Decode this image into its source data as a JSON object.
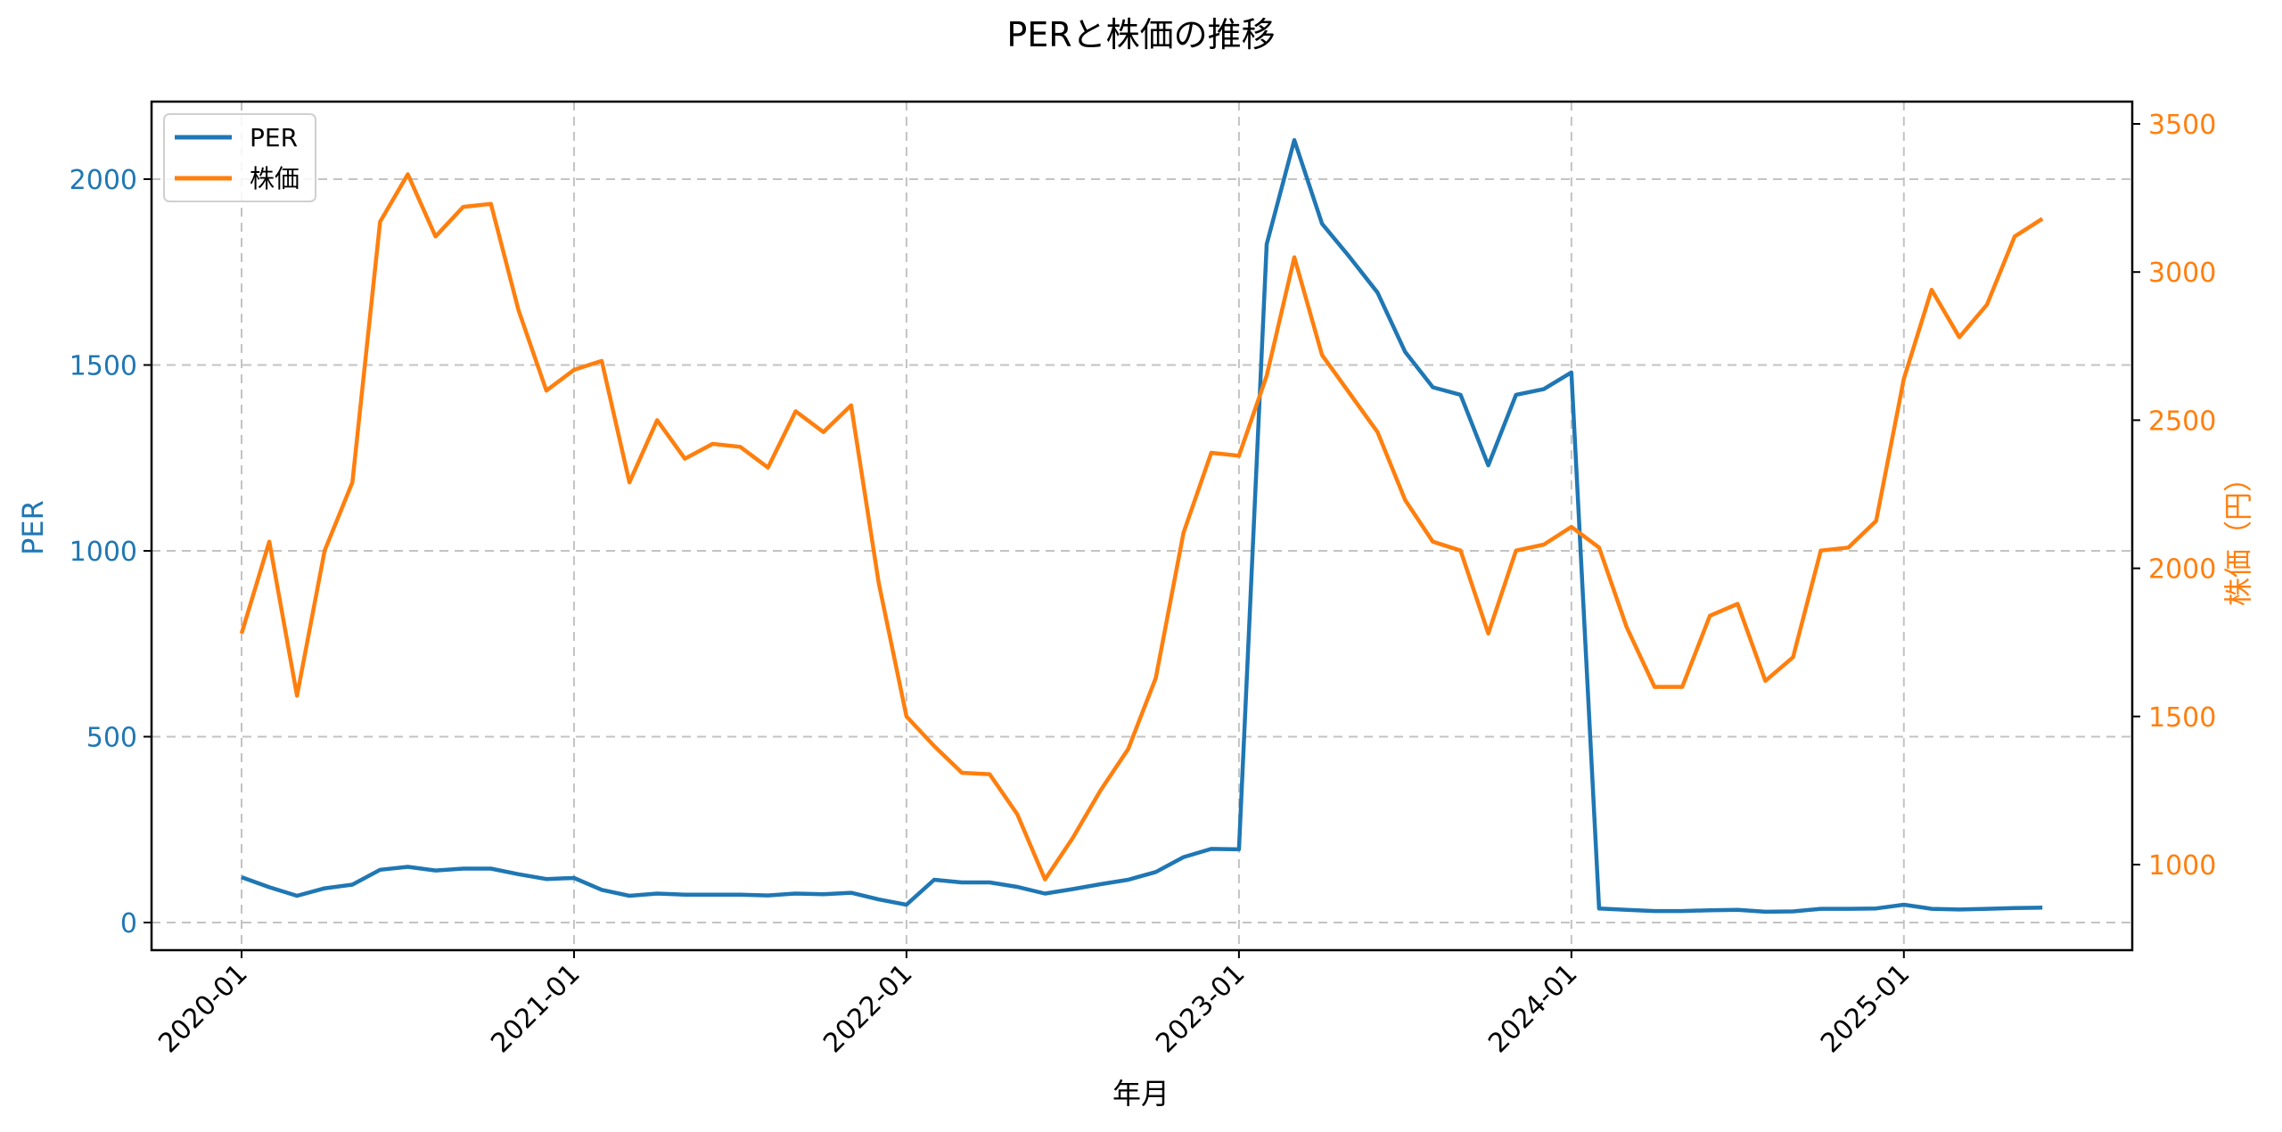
{
  "chart_data": {
    "type": "line",
    "title": "PERと株価の推移",
    "xlabel": "年月",
    "ylabel": "PER",
    "ylabel_right": "株価（円）",
    "ylim": [
      -75,
      2200
    ],
    "ylim_right": [
      760,
      3570
    ],
    "yticks": [
      0,
      500,
      1000,
      1500,
      2000
    ],
    "yticks_right": [
      1000,
      1500,
      2000,
      2500,
      3000,
      3500
    ],
    "xtick_labels": [
      "2020-01",
      "2021-01",
      "2022-01",
      "2023-01",
      "2024-01",
      "2025-01"
    ],
    "grid": true,
    "legend_position": "upper left",
    "x": [
      "2020-01",
      "2020-02",
      "2020-03",
      "2020-04",
      "2020-05",
      "2020-06",
      "2020-07",
      "2020-08",
      "2020-09",
      "2020-10",
      "2020-11",
      "2020-12",
      "2021-01",
      "2021-02",
      "2021-03",
      "2021-04",
      "2021-05",
      "2021-06",
      "2021-07",
      "2021-08",
      "2021-09",
      "2021-10",
      "2021-11",
      "2021-12",
      "2022-01",
      "2022-02",
      "2022-03",
      "2022-04",
      "2022-05",
      "2022-06",
      "2022-07",
      "2022-08",
      "2022-09",
      "2022-10",
      "2022-11",
      "2022-12",
      "2023-01",
      "2023-02",
      "2023-03",
      "2023-04",
      "2023-05",
      "2023-06",
      "2023-07",
      "2023-08",
      "2023-09",
      "2023-10",
      "2023-11",
      "2023-12",
      "2024-01",
      "2024-02",
      "2024-03",
      "2024-04",
      "2024-05",
      "2024-06",
      "2024-07",
      "2024-08",
      "2024-09",
      "2024-10",
      "2024-11",
      "2024-12",
      "2025-01",
      "2025-02",
      "2025-03",
      "2025-04",
      "2025-05",
      "2025-06"
    ],
    "series": [
      {
        "name": "PER",
        "axis": "left",
        "color": "#1f77b4",
        "values": [
          122,
          95,
          72,
          92,
          102,
          142,
          150,
          140,
          145,
          145,
          130,
          117,
          120,
          88,
          72,
          78,
          75,
          75,
          75,
          73,
          78,
          76,
          80,
          62,
          48,
          115,
          108,
          108,
          96,
          78,
          90,
          103,
          115,
          136,
          176,
          198,
          197,
          1825,
          2105,
          1880,
          1790,
          1695,
          1535,
          1440,
          1420,
          1230,
          1420,
          1435,
          1480,
          38,
          34,
          31,
          31,
          33,
          34,
          29,
          30,
          37,
          37,
          38,
          48,
          37,
          35,
          37,
          39,
          40
        ]
      },
      {
        "name": "株価",
        "axis": "right",
        "color": "#ff7f0e",
        "values": [
          1780,
          2090,
          1570,
          2060,
          2290,
          3170,
          3330,
          3120,
          3220,
          3230,
          2870,
          2600,
          2670,
          2700,
          2290,
          2500,
          2370,
          2420,
          2410,
          2340,
          2530,
          2460,
          2550,
          1950,
          1500,
          1400,
          1310,
          1305,
          1170,
          950,
          1090,
          1250,
          1390,
          1630,
          2120,
          2390,
          2380,
          2650,
          3050,
          2720,
          2590,
          2460,
          2230,
          2090,
          2060,
          1780,
          2060,
          2080,
          2140,
          2070,
          1800,
          1600,
          1600,
          1840,
          1880,
          1620,
          1700,
          2060,
          2070,
          2160,
          2640,
          2940,
          2780,
          2890,
          3120,
          3180
        ]
      }
    ]
  },
  "colors": {
    "per": "#1f77b4",
    "price": "#ff7f0e",
    "grid": "#b0b0b0",
    "axis": "#000000"
  },
  "legend": {
    "items": [
      {
        "label": "PER"
      },
      {
        "label": "株価"
      }
    ]
  }
}
